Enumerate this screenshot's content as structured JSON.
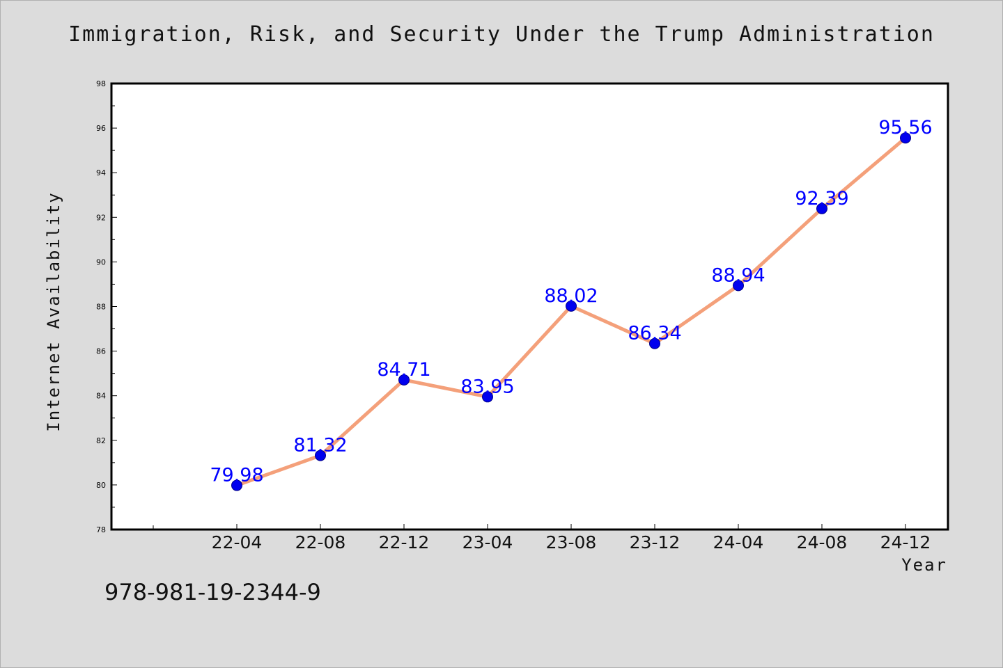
{
  "title": "Immigration, Risk, and Security Under the Trump Administration",
  "footer_note": "978-981-19-2344-9",
  "chart_data": {
    "type": "line",
    "title": "Immigration, Risk, and Security Under the Trump Administration",
    "xlabel": "Year",
    "ylabel": "Internet Availability",
    "categories": [
      "22-04",
      "22-08",
      "22-12",
      "23-04",
      "23-08",
      "23-12",
      "24-04",
      "24-08",
      "24-12"
    ],
    "series": [
      {
        "values": [
          79.98,
          81.32,
          84.71,
          83.95,
          88.02,
          86.34,
          88.94,
          92.39,
          95.56
        ]
      }
    ],
    "data_labels": [
      "79.98",
      "81.32",
      "84.71",
      "83.95",
      "88.02",
      "86.34",
      "88.94",
      "92.39",
      "95.56"
    ],
    "ylim": [
      78,
      98
    ],
    "yticks": [
      78,
      80,
      82,
      84,
      86,
      88,
      90,
      92,
      94,
      96,
      98
    ],
    "grid": false,
    "legend": "none",
    "colors": {
      "line": "#f4a07a",
      "marker": "#0000ee",
      "data_label": "#0000ff",
      "background": "#dcdcdc",
      "plot_background": "#ffffff"
    }
  }
}
